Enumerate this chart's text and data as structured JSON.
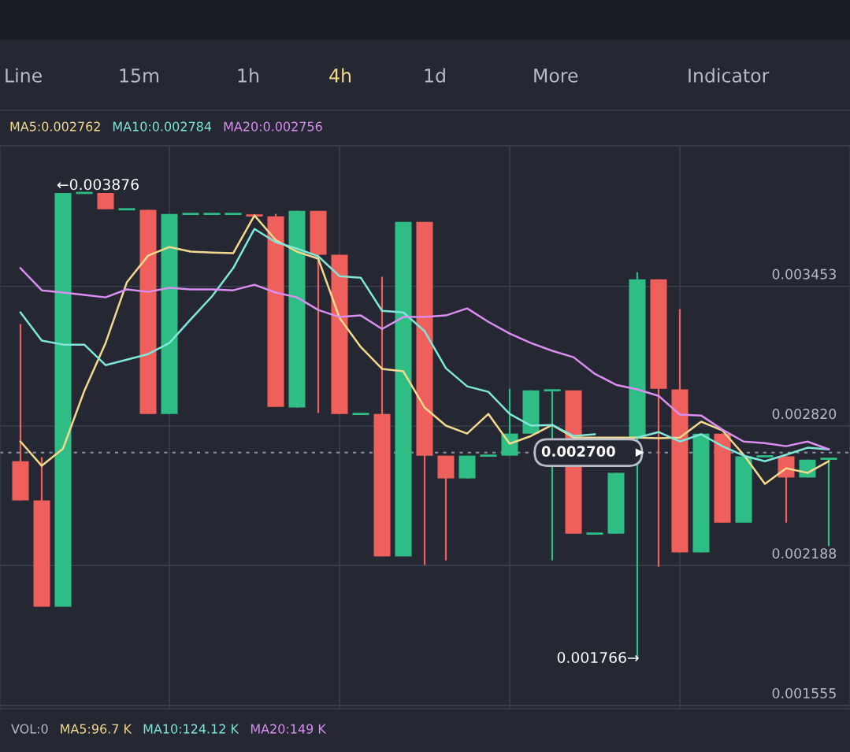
{
  "chart_data": {
    "type": "candlestick",
    "categories": [
      null,
      null,
      null,
      null,
      null,
      null,
      null,
      null,
      null,
      null,
      null,
      null,
      null,
      null,
      null,
      null,
      null,
      null,
      null,
      null,
      null,
      null,
      null,
      null,
      null,
      null,
      null,
      null,
      null,
      null,
      null,
      null,
      null,
      null,
      null,
      null,
      null,
      null,
      null
    ],
    "ohlc": [
      [
        0.002661,
        0.003282,
        0.002483,
        0.002483
      ],
      [
        0.002483,
        0.002679,
        0.002002,
        0.002002
      ],
      [
        0.002002,
        0.003876,
        0.002002,
        0.003876
      ],
      [
        0.003876,
        0.003876,
        0.003876,
        0.003876
      ],
      [
        0.003876,
        0.003876,
        0.003802,
        0.003802
      ],
      [
        0.003802,
        0.003802,
        0.003802,
        0.003802
      ],
      [
        0.003799,
        0.003799,
        0.002875,
        0.002875
      ],
      [
        0.002875,
        0.003781,
        0.002875,
        0.003781
      ],
      [
        0.003781,
        0.003781,
        0.003781,
        0.003781
      ],
      [
        0.003781,
        0.003781,
        0.003781,
        0.003781
      ],
      [
        0.003781,
        0.003781,
        0.003781,
        0.003781
      ],
      [
        0.003774,
        0.003774,
        0.003774,
        0.003774
      ],
      [
        0.00377,
        0.003781,
        0.002907,
        0.002907
      ],
      [
        0.002904,
        0.003795,
        0.002904,
        0.003795
      ],
      [
        0.003795,
        0.003795,
        0.002879,
        0.003596
      ],
      [
        0.003596,
        0.003596,
        0.002875,
        0.002875
      ],
      [
        0.002875,
        0.002875,
        0.002875,
        0.002875
      ],
      [
        0.002875,
        0.003496,
        0.00223,
        0.00223
      ],
      [
        0.00223,
        0.003745,
        0.00223,
        0.003745
      ],
      [
        0.003745,
        0.003745,
        0.002191,
        0.002686
      ],
      [
        0.002686,
        0.002686,
        0.002212,
        0.002583
      ],
      [
        0.002583,
        0.002686,
        0.002583,
        0.002686
      ],
      [
        0.002686,
        0.002686,
        0.002686,
        0.002686
      ],
      [
        0.002686,
        0.002989,
        0.002686,
        0.002786
      ],
      [
        0.002786,
        0.002982,
        0.002786,
        0.002982
      ],
      [
        0.002982,
        0.002982,
        0.002212,
        0.002982
      ],
      [
        0.002982,
        0.002982,
        0.002333,
        0.002333
      ],
      [
        0.002333,
        0.002333,
        0.002333,
        0.002333
      ],
      [
        0.002333,
        0.002608,
        0.002333,
        0.002608
      ],
      [
        0.002765,
        0.003517,
        0.001766,
        0.003485
      ],
      [
        0.003485,
        0.003485,
        0.002183,
        0.002989
      ],
      [
        0.002986,
        0.00335,
        0.002248,
        0.002248
      ],
      [
        0.002248,
        0.002786,
        0.002248,
        0.002786
      ],
      [
        0.002786,
        0.002786,
        0.002383,
        0.002383
      ],
      [
        0.002383,
        0.002683,
        0.002383,
        0.002683
      ],
      [
        0.002683,
        0.002683,
        0.002683,
        0.002683
      ],
      [
        0.002683,
        0.002683,
        0.002383,
        0.002587
      ],
      [
        0.002587,
        0.002668,
        0.002587,
        0.002668
      ],
      [
        0.002672,
        0.002672,
        0.002276,
        0.002672
      ]
    ],
    "colors": [
      "#ef5f5c",
      "#ef5f5c",
      "#2ebd85",
      "#2ebd85",
      "#ef5f5c",
      "#2ebd85",
      "#ef5f5c",
      "#2ebd85",
      "#2ebd85",
      "#2ebd85",
      "#2ebd85",
      "#ef5f5c",
      "#ef5f5c",
      "#2ebd85",
      "#ef5f5c",
      "#ef5f5c",
      "#2ebd85",
      "#ef5f5c",
      "#2ebd85",
      "#ef5f5c",
      "#ef5f5c",
      "#2ebd85",
      "#2ebd85",
      "#2ebd85",
      "#2ebd85",
      "#2ebd85",
      "#ef5f5c",
      "#2ebd85",
      "#2ebd85",
      "#2ebd85",
      "#ef5f5c",
      "#ef5f5c",
      "#2ebd85",
      "#ef5f5c",
      "#2ebd85",
      "#2ebd85",
      "#ef5f5c",
      "#2ebd85",
      "#2ebd85"
    ],
    "series": [
      {
        "name": "MA5:0.002762",
        "type": "line",
        "color": "#f3d98e",
        "values": [
          0.00275,
          0.00264,
          0.002718,
          0.002979,
          0.003196,
          0.003471,
          0.003592,
          0.003631,
          0.00361,
          0.003606,
          0.003603,
          0.003774,
          0.003663,
          0.00361,
          0.003578,
          0.00331,
          0.003178,
          0.003079,
          0.003068,
          0.002904,
          0.002822,
          0.002786,
          0.002875,
          0.00274,
          0.002775,
          0.002825,
          0.002768,
          0.002768,
          0.002768,
          0.002768,
          0.002765,
          0.002768,
          0.00284,
          0.0028,
          0.00269,
          0.002558,
          0.002629,
          0.002608,
          0.002661
        ]
      },
      {
        "name": "MA10:0.002784",
        "type": "line",
        "color": "#7fe6d9",
        "values": [
          0.003335,
          0.003207,
          0.003189,
          0.003189,
          0.003096,
          0.003121,
          0.003146,
          0.003196,
          0.003303,
          0.003407,
          0.003535,
          0.003713,
          0.003653,
          0.003624,
          0.003589,
          0.003499,
          0.003492,
          0.003342,
          0.003335,
          0.00325,
          0.003082,
          0.003,
          0.002975,
          0.002875,
          0.002822,
          0.002825,
          0.002775,
          0.002783,
          null,
          0.002768,
          0.002793,
          0.00275,
          0.002783,
          0.002729,
          0.002686,
          0.002661,
          0.00269,
          0.002722,
          0.002715
        ]
      },
      {
        "name": "MA20:0.002756",
        "type": "line",
        "color": "#d98ef0",
        "values": [
          0.003535,
          0.003435,
          0.003425,
          0.003414,
          0.003403,
          0.003439,
          0.003428,
          0.003446,
          0.003439,
          0.003439,
          0.003435,
          0.00346,
          0.003425,
          0.003403,
          0.003346,
          0.003314,
          0.003321,
          0.00326,
          0.003314,
          0.003314,
          0.003321,
          0.003353,
          0.003292,
          0.003239,
          0.003196,
          0.003161,
          0.003132,
          0.003057,
          0.003007,
          0.002986,
          0.002957,
          0.002872,
          0.002868,
          0.002804,
          0.00275,
          0.002743,
          0.002729,
          0.00275,
          0.002715
        ]
      }
    ],
    "ylim": [
      0.00154,
      0.00409
    ],
    "yticks": [
      {
        "value": 0.003453,
        "label": "0.003453"
      },
      {
        "value": 0.00282,
        "label": "0.002820"
      },
      {
        "value": 0.002188,
        "label": "0.002188"
      },
      {
        "value": 0.001555,
        "label": "0.001555"
      }
    ],
    "tick_labels": "y",
    "grid": true,
    "legend": "top left",
    "ref_lines": [
      {
        "axis": "y",
        "value": 0.0027,
        "label": "0.002700",
        "color": "#8b93a7",
        "line_style": "dotted"
      }
    ],
    "annotations": [
      "Line",
      "15m",
      "1h",
      "4h",
      "1d",
      "More",
      "Indicator",
      "VOL:0",
      "MA5:96.7 K",
      "MA10:124.12 K",
      "MA20:149 K",
      "0.001766→",
      {
        "text": "←0.003876",
        "y": 0.003876
      }
    ]
  }
}
